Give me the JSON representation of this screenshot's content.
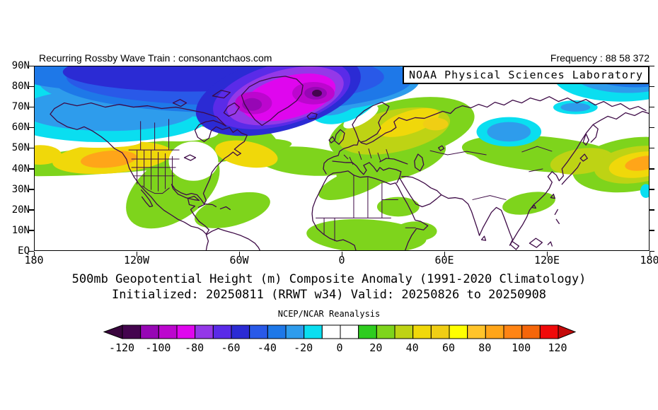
{
  "header": {
    "left": "Recurring Rossby Wave Train : consonantchaos.com",
    "right": "Frequency : 88 58 372"
  },
  "map": {
    "source_label": "NOAA Physical Sciences Laboratory"
  },
  "axes": {
    "lat_ticks": [
      "90N",
      "80N",
      "70N",
      "60N",
      "50N",
      "40N",
      "30N",
      "20N",
      "10N",
      "EQ"
    ],
    "lon_ticks": [
      "180",
      "120W",
      "60W",
      "0",
      "60E",
      "120E",
      "180"
    ]
  },
  "titles": {
    "line1": "500mb Geopotential Height (m) Composite Anomaly (1991-2020 Climatology)",
    "line2": "Initialized: 20250811 (RRWT w34) Valid: 20250826 to 20250908",
    "dataset": "NCEP/NCAR Reanalysis"
  },
  "colorbar": {
    "tick_labels": [
      "-120",
      "-100",
      "-80",
      "-60",
      "-40",
      "-20",
      "0",
      "20",
      "40",
      "60",
      "80",
      "100",
      "120"
    ],
    "cell_colors": [
      "#44054E",
      "#9707B5",
      "#BC06CE",
      "#DF06EE",
      "#9438E8",
      "#5A2BE8",
      "#2B2BD4",
      "#2959E8",
      "#1E78E8",
      "#2E9CEC",
      "#0ADEF0",
      "#FFFFFF",
      "#FFFFFF",
      "#2ECC1F",
      "#7ED41C",
      "#BED314",
      "#F0D80A",
      "#F0CE14",
      "#FFFF00",
      "#FFC42A",
      "#FFA519",
      "#FF8414",
      "#F5660A",
      "#F00A0A"
    ],
    "left_arrow_color": "#3A063E",
    "right_arrow_color": "#C40A0A",
    "outline_color": "#000000"
  },
  "chart_data": {
    "type": "heatmap",
    "title": "500mb Geopotential Height (m) Composite Anomaly (1991-2020 Climatology)",
    "subtitle": "Initialized: 20250811 (RRWT w34) Valid: 20250826 to 20250908",
    "dataset": "NCEP/NCAR Reanalysis",
    "units": "m",
    "lon_range": [
      -180,
      180
    ],
    "lat_range": [
      0,
      90
    ],
    "levels": {
      "min": -120,
      "max": 120,
      "step": 10
    },
    "coastline_color": "#3D0A46",
    "anomaly_centers": [
      {
        "region": "Greenland / Arctic low",
        "lon": -31,
        "lat": 76,
        "value_m": -90
      },
      {
        "region": "Baffin Island spot",
        "lon": -53,
        "lat": 71,
        "value_m": -110
      },
      {
        "region": "NE Greenland spot",
        "lon": -15,
        "lat": 77,
        "value_m": -115
      },
      {
        "region": "Arctic near dateline",
        "lon": 172,
        "lat": 88,
        "value_m": -55
      },
      {
        "region": "Central Siberia",
        "lon": 98,
        "lat": 58,
        "value_m": -30
      },
      {
        "region": "NE Pacific / Gulf of Alaska ridge",
        "lon": -136,
        "lat": 45,
        "value_m": 85
      },
      {
        "region": "Newfoundland / NW Atlantic ridge",
        "lon": -56,
        "lat": 47,
        "value_m": 50
      },
      {
        "region": "Northern Europe / Urals ridge",
        "lon": 50,
        "lat": 62,
        "value_m": 55
      },
      {
        "region": "NW Pacific east of Japan ridge",
        "lon": 176,
        "lat": 42,
        "value_m": 85
      }
    ],
    "field_format": "[lon, lat, radius_lon_deg, radius_lat_deg, anomaly_m, rotation_deg]",
    "field": [
      [
        -118,
        45.7,
        89,
        6.9,
        25,
        -5
      ],
      [
        -99,
        29.9,
        31,
        15.1,
        25,
        -35
      ],
      [
        -64.1,
        19.6,
        22.8,
        7.6,
        25,
        -15
      ],
      [
        -60,
        53.9,
        24.8,
        11,
        25,
        20
      ],
      [
        -21.1,
        43.6,
        29,
        6.9,
        25,
        5
      ],
      [
        35.2,
        59.1,
        43.4,
        14.4,
        25,
        -12
      ],
      [
        28.9,
        43.6,
        33.1,
        9.6,
        25,
        -15
      ],
      [
        7.9,
        33.3,
        22.8,
        6.2,
        25,
        -20
      ],
      [
        33.1,
        21.3,
        12.4,
        4.8,
        25,
        0
      ],
      [
        14.5,
        6.9,
        35.2,
        8.2,
        25,
        3
      ],
      [
        43.4,
        9.3,
        12.4,
        4.8,
        25,
        0
      ],
      [
        117.9,
        47.1,
        47.6,
        8.6,
        25,
        5
      ],
      [
        109.7,
        23,
        15.7,
        5.2,
        25,
        -10
      ],
      [
        170.1,
        41.9,
        35.2,
        13.1,
        25,
        -8
      ],
      [
        31,
        58.4,
        33.1,
        10.3,
        35,
        -12
      ],
      [
        140.7,
        43.6,
        18.6,
        6.2,
        35,
        -8
      ],
      [
        172.6,
        41.9,
        24.8,
        8.9,
        35,
        -8
      ],
      [
        -134.5,
        45.3,
        35.2,
        7.6,
        45,
        -5
      ],
      [
        -55.9,
        47.1,
        18.6,
        6.2,
        45,
        10
      ],
      [
        39.3,
        62.5,
        18.6,
        5.5,
        45,
        -18
      ],
      [
        55,
        61.8,
        7.4,
        3.1,
        55,
        0
      ],
      [
        175.1,
        41.9,
        18.6,
        6.2,
        45,
        -8
      ],
      [
        -176.7,
        46.7,
        12.4,
        4.8,
        45,
        0
      ],
      [
        -136.6,
        44.6,
        16.5,
        4.1,
        85,
        -5
      ],
      [
        176.7,
        42.6,
        10.8,
        3.4,
        85,
        -10
      ],
      [
        -86.9,
        43.6,
        14.5,
        9.6,
        0,
        0
      ],
      [
        72.4,
        38.5,
        11.6,
        8.6,
        0,
        0
      ],
      [
        11.2,
        65.3,
        11.6,
        3.4,
        0,
        -30
      ],
      [
        -97.2,
        57.4,
        24.8,
        4.1,
        0,
        0
      ],
      [
        -142.8,
        52.9,
        24.8,
        2.7,
        0,
        0
      ],
      [
        -76.6,
        83.8,
        120,
        20.6,
        -15,
        0
      ],
      [
        -138.6,
        66,
        62,
        13.1,
        -15,
        0
      ],
      [
        2.1,
        74.5,
        22.8,
        11,
        -15,
        -25
      ],
      [
        -66.2,
        83.1,
        111.7,
        17.9,
        -25,
        0
      ],
      [
        -136.6,
        68.7,
        51.7,
        10.3,
        -25,
        0
      ],
      [
        -1.2,
        75.6,
        17.4,
        8.2,
        -25,
        -25
      ],
      [
        -64.1,
        83.8,
        105.5,
        16.5,
        -35,
        0
      ],
      [
        -143.6,
        87.3,
        49.7,
        8.9,
        -35,
        0
      ],
      [
        -4.1,
        76.3,
        12.4,
        5.8,
        -35,
        -25
      ],
      [
        -68.3,
        84.8,
        93.1,
        13.7,
        -45,
        0
      ],
      [
        -7,
        76.9,
        8.3,
        4.1,
        -45,
        -25
      ],
      [
        -89,
        87.3,
        74.5,
        9.6,
        -55,
        0
      ],
      [
        -37.2,
        76.3,
        49.7,
        17.9,
        -55,
        -15
      ],
      [
        -35.2,
        76.3,
        41.4,
        15.1,
        -65,
        -15
      ],
      [
        -33.1,
        75.6,
        35.2,
        12.7,
        -75,
        -15
      ],
      [
        -31,
        74.9,
        28.1,
        10.3,
        -85,
        -15
      ],
      [
        -51.7,
        72.1,
        10.8,
        5.5,
        -95,
        0
      ],
      [
        -16.6,
        76.9,
        12.4,
        5.5,
        -95,
        0
      ],
      [
        -52.6,
        71.4,
        5.8,
        3.1,
        -105,
        0
      ],
      [
        -15.3,
        76.9,
        6.6,
        3.1,
        -105,
        0
      ],
      [
        -14.5,
        76.9,
        2.9,
        1.7,
        -115,
        0
      ],
      [
        163.4,
        85.2,
        39.3,
        12.4,
        -15,
        0
      ],
      [
        167.6,
        87.3,
        33.1,
        10.3,
        -25,
        0
      ],
      [
        172,
        88,
        29,
        8.2,
        -35,
        0
      ],
      [
        174.2,
        88.6,
        16.5,
        4.8,
        -55,
        0
      ],
      [
        98,
        58,
        19,
        7.2,
        -15,
        0
      ],
      [
        98,
        58,
        12.8,
        4.8,
        -25,
        0
      ],
      [
        137,
        70,
        13,
        3.4,
        -15,
        0
      ],
      [
        137,
        70,
        8.7,
        2.1,
        -25,
        0
      ],
      [
        178.3,
        29,
        3.3,
        3.4,
        -15,
        0
      ]
    ]
  }
}
